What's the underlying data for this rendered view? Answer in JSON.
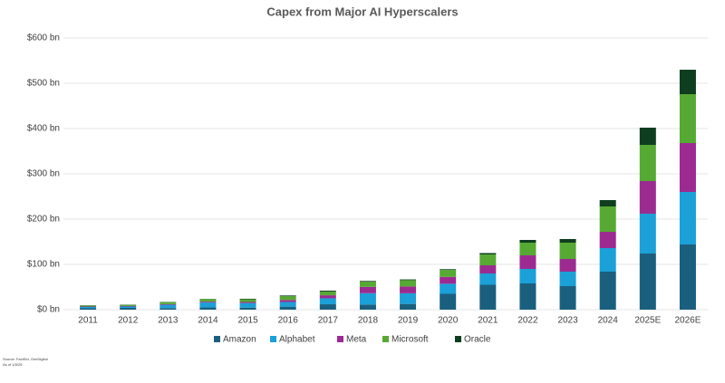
{
  "chart_data": {
    "type": "stacked_bar",
    "title": "Capex from Major AI Hyperscalers",
    "source": "Source: FactSet, OneDigital",
    "as_of": "As of 1/5/25",
    "categories": [
      "2011",
      "2012",
      "2013",
      "2014",
      "2015",
      "2016",
      "2017",
      "2018",
      "2019",
      "2020",
      "2021",
      "2022",
      "2023",
      "2024",
      "2025E",
      "2026E"
    ],
    "series": [
      {
        "name": "Amazon",
        "color": "#1b5f7f",
        "values": [
          3,
          4,
          3.4,
          4.9,
          4.6,
          6.7,
          11.9,
          11.3,
          12.7,
          35,
          55,
          58,
          52,
          84,
          124,
          144
        ]
      },
      {
        "name": "Alphabet",
        "color": "#1ba0d8",
        "values": [
          3,
          3,
          7.4,
          11,
          9.9,
          10.2,
          13.2,
          25.1,
          23.5,
          22.3,
          25,
          32,
          32,
          52,
          88,
          116
        ]
      },
      {
        "name": "Meta",
        "color": "#9c2b91",
        "values": [
          1,
          1,
          1.4,
          1.8,
          2.5,
          4.5,
          6.7,
          13.9,
          15.1,
          15.1,
          18,
          30,
          28,
          36,
          72,
          108
        ]
      },
      {
        "name": "Microsoft",
        "color": "#56a933",
        "values": [
          2,
          2.5,
          4.3,
          5.5,
          5.9,
          8.3,
          8.1,
          11.6,
          13.9,
          15.4,
          24,
          28,
          36,
          56,
          80,
          108
        ]
      },
      {
        "name": "Oracle",
        "color": "#0f3d1f",
        "values": [
          0.5,
          0.6,
          0.6,
          0.5,
          1.2,
          1.6,
          2.0,
          1.5,
          1.6,
          1.6,
          3,
          6,
          8,
          14,
          38,
          54
        ]
      }
    ],
    "ylim": [
      0,
      600
    ],
    "yticks": [
      {
        "value": 0,
        "label": "$0 bn"
      },
      {
        "value": 100,
        "label": "$100 bn"
      },
      {
        "value": 200,
        "label": "$200 bn"
      },
      {
        "value": 300,
        "label": "$300 bn"
      },
      {
        "value": 400,
        "label": "$400 bn"
      },
      {
        "value": 500,
        "label": "$500 bn"
      },
      {
        "value": 600,
        "label": "$600 bn"
      }
    ],
    "grid": true,
    "legend": "bottom"
  }
}
